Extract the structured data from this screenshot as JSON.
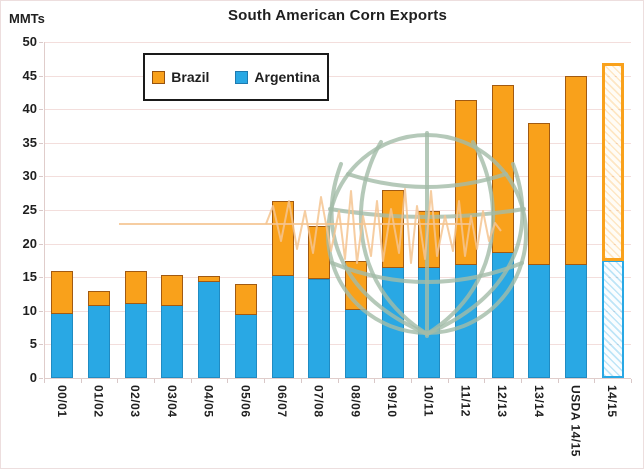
{
  "title": "South American Corn Exports",
  "axis_unit_label": "MMTs",
  "legend": {
    "items": [
      {
        "label": "Brazil",
        "series": "Brazil"
      },
      {
        "label": "Argentina",
        "series": "Argentina"
      }
    ]
  },
  "colors": {
    "brazil_fill": "#f9a11b",
    "brazil_border": "#96520f",
    "argentina_fill": "#29a8e4",
    "argentina_border": "#1e7ab0",
    "gridline": "#f3dedc",
    "axis": "#e0cdcb",
    "text": "#1f1f1f",
    "watermark_globe": "#a2bca8",
    "watermark_line": "#f5c490",
    "legend_border": "#1a1a1a"
  },
  "chart_data": {
    "type": "bar",
    "stacked": true,
    "title": "South American Corn Exports",
    "ylabel": "MMTs",
    "xlabel": "",
    "ylim": [
      0,
      50
    ],
    "yticks": [
      0,
      5,
      10,
      15,
      20,
      25,
      30,
      35,
      40,
      45,
      50
    ],
    "grid": true,
    "legend_position": "top-left-inside",
    "categories": [
      "00/01",
      "01/02",
      "02/03",
      "03/04",
      "04/05",
      "05/06",
      "06/07",
      "07/08",
      "08/09",
      "09/10",
      "10/11",
      "11/12",
      "12/13",
      "13/14",
      "USDA 14/15",
      "14/15"
    ],
    "series": [
      {
        "name": "Argentina",
        "values": [
          9.7,
          10.8,
          11.2,
          10.9,
          14.5,
          9.5,
          15.3,
          14.8,
          10.3,
          16.5,
          16.5,
          17.0,
          18.7,
          17.0,
          17.0,
          17.6
        ]
      },
      {
        "name": "Brazil",
        "values": [
          6.2,
          2.1,
          4.7,
          4.5,
          0.7,
          4.5,
          11.0,
          7.8,
          7.1,
          11.5,
          8.3,
          24.4,
          24.9,
          21.0,
          28.0,
          29.3
        ]
      }
    ],
    "stacked_totals": [
      15.9,
      12.9,
      15.9,
      15.4,
      15.2,
      14.0,
      26.3,
      22.6,
      17.4,
      28.0,
      24.8,
      41.4,
      43.6,
      38.0,
      45.0,
      46.9
    ],
    "forecast_categories": [
      "14/15"
    ],
    "forecast_style": "hatched-outline"
  }
}
